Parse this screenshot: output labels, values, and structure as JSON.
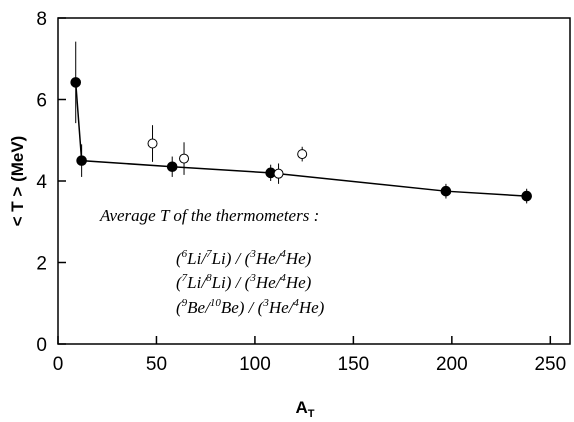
{
  "chart_data": {
    "type": "scatter",
    "xlabel": "A",
    "xlabel_sub": "T",
    "ylabel": "< T > (MeV)",
    "xlim": [
      0,
      260
    ],
    "ylim": [
      0,
      8
    ],
    "xticks": [
      0,
      50,
      100,
      150,
      200,
      250
    ],
    "yticks": [
      0,
      2,
      4,
      6,
      8
    ],
    "series": [
      {
        "marker": "filled-circle",
        "connected": true,
        "points": [
          {
            "x": 9,
            "y": 6.42,
            "err": 1.0
          },
          {
            "x": 12,
            "y": 4.5,
            "err": 0.4
          },
          {
            "x": 58,
            "y": 4.35,
            "err": 0.25
          },
          {
            "x": 108,
            "y": 4.2,
            "err": 0.2
          },
          {
            "x": 197,
            "y": 3.75,
            "err": 0.18
          },
          {
            "x": 238,
            "y": 3.63,
            "err": 0.18
          }
        ]
      },
      {
        "marker": "open-circle",
        "connected": false,
        "points": [
          {
            "x": 48,
            "y": 4.92,
            "err": 0.45
          },
          {
            "x": 64,
            "y": 4.55,
            "err": 0.4
          },
          {
            "x": 112,
            "y": 4.18,
            "err": 0.25
          },
          {
            "x": 124,
            "y": 4.66,
            "err": 0.18
          }
        ]
      }
    ],
    "annotation": {
      "heading": "Average T  of the thermometers :",
      "lines": [
        [
          [
            "",
            "("
          ],
          [
            "6",
            ""
          ],
          [
            "",
            "Li/"
          ],
          [
            "7",
            ""
          ],
          [
            "",
            "Li) / ("
          ],
          [
            "3",
            ""
          ],
          [
            "",
            "He/"
          ],
          [
            "4",
            ""
          ],
          [
            "",
            "He)"
          ]
        ],
        [
          [
            "",
            "("
          ],
          [
            "7",
            ""
          ],
          [
            "",
            "Li/"
          ],
          [
            "8",
            ""
          ],
          [
            "",
            "Li) / ("
          ],
          [
            "3",
            ""
          ],
          [
            "",
            "He/"
          ],
          [
            "4",
            ""
          ],
          [
            "",
            "He)"
          ]
        ],
        [
          [
            "",
            "("
          ],
          [
            "9",
            ""
          ],
          [
            "",
            "Be/"
          ],
          [
            "10",
            ""
          ],
          [
            "",
            "Be) / ("
          ],
          [
            "3",
            ""
          ],
          [
            "",
            "He/"
          ],
          [
            "4",
            ""
          ],
          [
            "",
            "He)"
          ]
        ]
      ]
    }
  }
}
